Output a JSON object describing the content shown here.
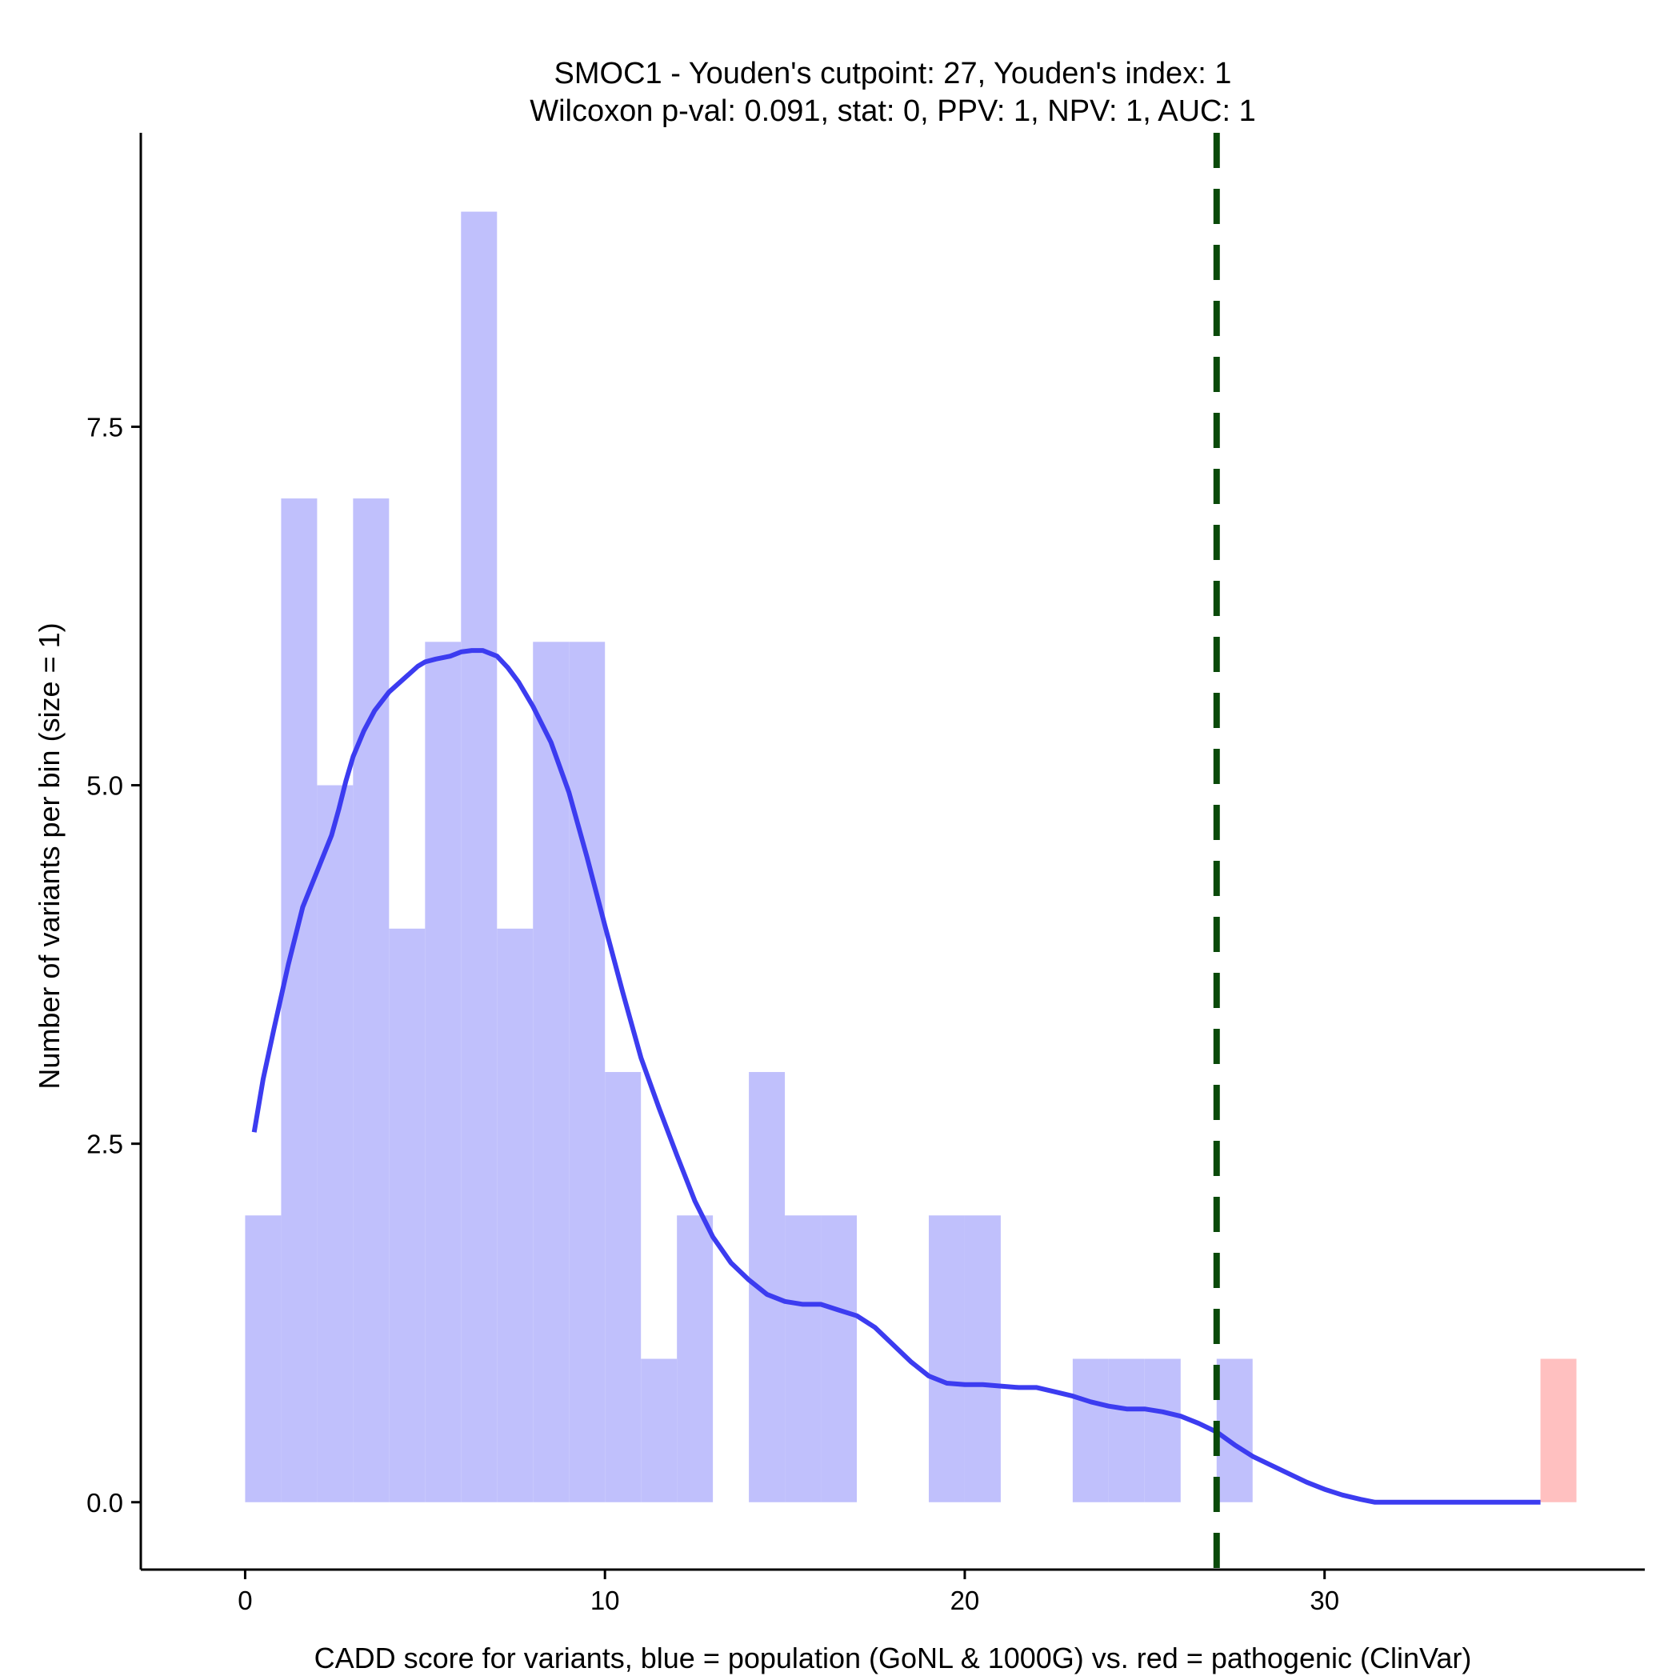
{
  "chart_data": {
    "type": "bar",
    "title_line1": "SMOC1 - Youden's cutpoint: 27, Youden's index: 1",
    "title_line2": "Wilcoxon p-val: 0.091, stat: 0, PPV: 1, NPV: 1, AUC: 1",
    "xlabel": "CADD score for variants, blue = population (GoNL & 1000G) vs. red = pathogenic (ClinVar)",
    "ylabel": "Number of variants per bin (size = 1)",
    "xlim": [
      -2.9,
      38.9
    ],
    "ylim": [
      -0.47,
      9.55
    ],
    "x_ticks": [
      0,
      10,
      20,
      30
    ],
    "x_tick_labels": [
      "0",
      "10",
      "20",
      "30"
    ],
    "y_ticks": [
      0,
      2.5,
      5,
      7.5
    ],
    "y_tick_labels": [
      "0.0",
      "2.5",
      "5.0",
      "7.5"
    ],
    "bin_width": 1,
    "colors": {
      "population_bar": "#c0c0fc",
      "pathogenic_bar": "#ffc0c0",
      "density_line": "#3c3cf0",
      "cutpoint_line": "#0a4a0a"
    },
    "series": [
      {
        "name": "population (GoNL & 1000G)",
        "color": "#c0c0fc",
        "bins": [
          {
            "x0": 0,
            "x1": 1,
            "count": 2
          },
          {
            "x0": 1,
            "x1": 2,
            "count": 7
          },
          {
            "x0": 2,
            "x1": 3,
            "count": 5
          },
          {
            "x0": 3,
            "x1": 4,
            "count": 7
          },
          {
            "x0": 4,
            "x1": 5,
            "count": 4
          },
          {
            "x0": 5,
            "x1": 6,
            "count": 6
          },
          {
            "x0": 6,
            "x1": 7,
            "count": 9
          },
          {
            "x0": 7,
            "x1": 8,
            "count": 4
          },
          {
            "x0": 8,
            "x1": 9,
            "count": 6
          },
          {
            "x0": 9,
            "x1": 10,
            "count": 6
          },
          {
            "x0": 10,
            "x1": 11,
            "count": 3
          },
          {
            "x0": 11,
            "x1": 12,
            "count": 1
          },
          {
            "x0": 12,
            "x1": 13,
            "count": 2
          },
          {
            "x0": 14,
            "x1": 15,
            "count": 3
          },
          {
            "x0": 15,
            "x1": 16,
            "count": 2
          },
          {
            "x0": 16,
            "x1": 17,
            "count": 2
          },
          {
            "x0": 19,
            "x1": 20,
            "count": 2
          },
          {
            "x0": 20,
            "x1": 21,
            "count": 2
          },
          {
            "x0": 23,
            "x1": 24,
            "count": 1
          },
          {
            "x0": 24,
            "x1": 25,
            "count": 1
          },
          {
            "x0": 25,
            "x1": 26,
            "count": 1
          },
          {
            "x0": 27,
            "x1": 28,
            "count": 1
          }
        ]
      },
      {
        "name": "pathogenic (ClinVar)",
        "color": "#ffc0c0",
        "bins": [
          {
            "x0": 36,
            "x1": 37,
            "count": 1
          }
        ]
      }
    ],
    "density_curve": {
      "x": [
        0.25,
        0.5,
        0.8,
        1.2,
        1.6,
        2.0,
        2.4,
        2.6,
        2.8,
        3.0,
        3.3,
        3.6,
        4.0,
        4.4,
        4.8,
        5.0,
        5.3,
        5.7,
        6.0,
        6.3,
        6.6,
        7.0,
        7.3,
        7.6,
        8.0,
        8.5,
        9.0,
        9.5,
        10.0,
        10.5,
        11.0,
        11.5,
        12.0,
        12.5,
        13.0,
        13.5,
        14.0,
        14.5,
        15.0,
        15.5,
        16.0,
        16.5,
        17.0,
        17.5,
        18.0,
        18.5,
        19.0,
        19.5,
        20.0,
        20.5,
        21.0,
        21.5,
        22.0,
        22.5,
        23.0,
        23.5,
        24.0,
        24.5,
        25.0,
        25.5,
        26.0,
        26.5,
        27.0,
        27.5,
        28.0,
        28.5,
        29.0,
        29.5,
        30.0,
        30.5,
        31.0,
        31.4,
        32.0,
        33.0,
        34.0,
        35.0,
        36.0
      ],
      "y": [
        2.58,
        2.95,
        3.3,
        3.75,
        4.15,
        4.4,
        4.65,
        4.83,
        5.03,
        5.2,
        5.38,
        5.52,
        5.65,
        5.74,
        5.83,
        5.86,
        5.88,
        5.9,
        5.93,
        5.94,
        5.94,
        5.9,
        5.82,
        5.72,
        5.55,
        5.3,
        4.95,
        4.5,
        4.02,
        3.55,
        3.1,
        2.75,
        2.42,
        2.1,
        1.85,
        1.67,
        1.55,
        1.45,
        1.4,
        1.38,
        1.38,
        1.34,
        1.3,
        1.22,
        1.1,
        0.98,
        0.88,
        0.83,
        0.82,
        0.82,
        0.81,
        0.8,
        0.8,
        0.77,
        0.74,
        0.7,
        0.67,
        0.65,
        0.65,
        0.63,
        0.6,
        0.55,
        0.49,
        0.4,
        0.32,
        0.26,
        0.2,
        0.14,
        0.09,
        0.05,
        0.02,
        0.0,
        0.0,
        0.0,
        0.0,
        0.0,
        0.0
      ]
    },
    "cutpoint": 27,
    "grid": false,
    "legend": "none"
  }
}
